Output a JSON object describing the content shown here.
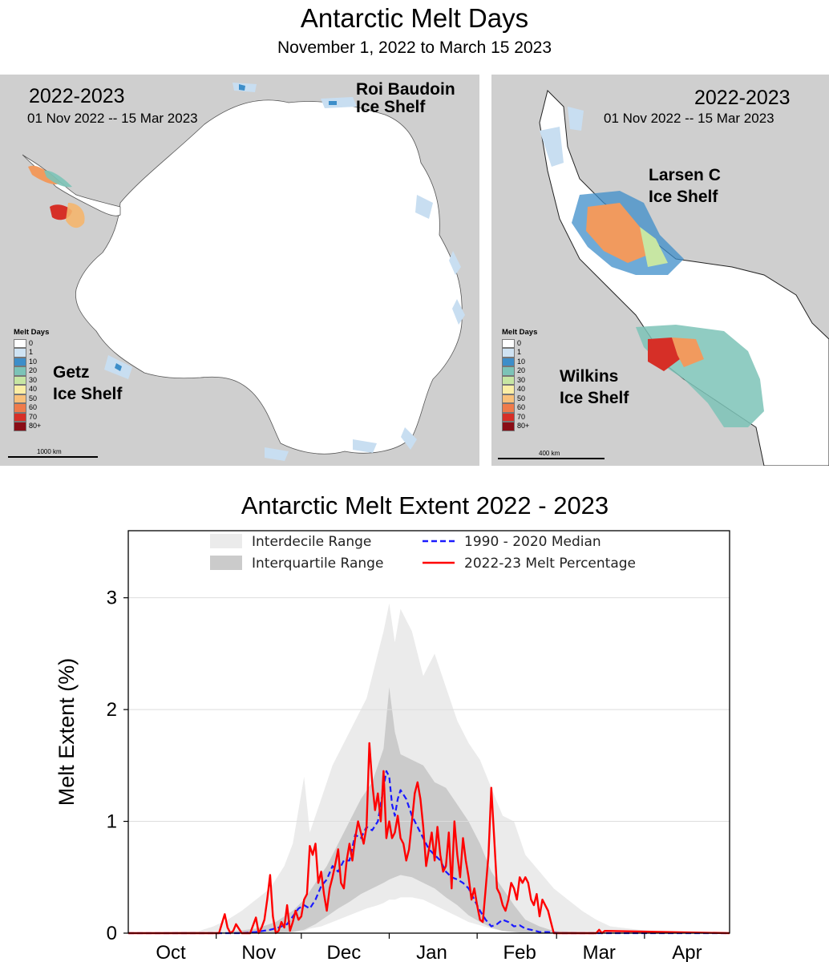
{
  "header": {
    "title": "Antarctic Melt Days",
    "subtitle": "November 1, 2022 to March 15 2023"
  },
  "map_left": {
    "season": "2022-2023",
    "date_range": "01 Nov 2022  -- 15 Mar 2023",
    "label_top_right": "Roi Baudoin\nIce Shelf",
    "label_bottom_left": "Getz\nIce Shelf",
    "scale": "1000 km"
  },
  "map_right": {
    "season": "2022-2023",
    "date_range": "01 Nov 2022  -- 15 Mar 2023",
    "label_upper": "Larsen C\nIce Shelf",
    "label_lower": "Wilkins\nIce Shelf",
    "scale": "400 km"
  },
  "melt_legend": {
    "title": "Melt Days",
    "items": [
      {
        "label": "0",
        "color": "#ffffff"
      },
      {
        "label": "1",
        "color": "#cfe3f3"
      },
      {
        "label": "10",
        "color": "#3d8ec9"
      },
      {
        "label": "20",
        "color": "#7cc3b7"
      },
      {
        "label": "30",
        "color": "#c7e6a3"
      },
      {
        "label": "40",
        "color": "#fbeea5"
      },
      {
        "label": "50",
        "color": "#f9c07a"
      },
      {
        "label": "60",
        "color": "#ef7b4b"
      },
      {
        "label": "70",
        "color": "#d62f27"
      },
      {
        "label": "80+",
        "color": "#8a0d16"
      }
    ]
  },
  "chart_data": {
    "type": "line",
    "title": "Antarctic Melt Extent 2022 - 2023",
    "xlabel": "",
    "ylabel": "Melt Extent (%)",
    "x_unit": "day offset from Oct 1",
    "xlim": [
      0,
      212
    ],
    "ylim": [
      0,
      3.6
    ],
    "yticks": [
      0,
      1,
      2,
      3
    ],
    "month_ticks": [
      {
        "label": "Oct",
        "x": 15
      },
      {
        "label": "Nov",
        "x": 46
      },
      {
        "label": "Dec",
        "x": 76
      },
      {
        "label": "Jan",
        "x": 107
      },
      {
        "label": "Feb",
        "x": 138
      },
      {
        "label": "Mar",
        "x": 166
      },
      {
        "label": "Apr",
        "x": 197
      }
    ],
    "month_boundaries": [
      31,
      61,
      92,
      123,
      151,
      182
    ],
    "grid": "horizontal",
    "legend_position": "top",
    "legend": [
      {
        "label": "Interdecile Range",
        "style": "fill",
        "color": "#ebebeb"
      },
      {
        "label": "Interquartile Range",
        "style": "fill",
        "color": "#cbcbcb"
      },
      {
        "label": "1990 - 2020 Median",
        "style": "dashed",
        "color": "#1a1aff"
      },
      {
        "label": "2022-23 Melt Percentage",
        "style": "solid",
        "color": "#ff0000"
      }
    ],
    "series": [
      {
        "name": "Interdecile Range",
        "x": [
          0,
          25,
          30,
          35,
          40,
          45,
          50,
          55,
          58,
          62,
          64,
          68,
          72,
          76,
          80,
          84,
          88,
          90,
          92,
          94,
          96,
          100,
          104,
          108,
          112,
          116,
          120,
          124,
          128,
          132,
          136,
          140,
          145,
          150,
          155,
          160,
          165,
          170,
          180,
          190,
          212
        ],
        "upper": [
          0.0,
          0.02,
          0.06,
          0.12,
          0.2,
          0.3,
          0.4,
          0.6,
          0.8,
          1.4,
          0.9,
          1.2,
          1.5,
          1.7,
          1.9,
          2.1,
          2.5,
          2.7,
          2.95,
          2.6,
          2.9,
          2.7,
          2.3,
          2.5,
          2.2,
          1.9,
          1.7,
          1.55,
          1.3,
          1.05,
          1.0,
          0.7,
          0.55,
          0.4,
          0.3,
          0.2,
          0.12,
          0.06,
          0.03,
          0.01,
          0.0
        ],
        "lower": [
          0.0,
          0.0,
          0.0,
          0.0,
          0.0,
          0.0,
          0.0,
          0.0,
          0.01,
          0.02,
          0.04,
          0.06,
          0.1,
          0.14,
          0.18,
          0.22,
          0.25,
          0.27,
          0.3,
          0.3,
          0.32,
          0.32,
          0.3,
          0.25,
          0.2,
          0.15,
          0.1,
          0.07,
          0.04,
          0.02,
          0.01,
          0.0,
          0.0,
          0.0,
          0.0,
          0.0,
          0.0,
          0.0,
          0.0,
          0.0,
          0.0
        ]
      },
      {
        "name": "Interquartile Range",
        "x": [
          0,
          35,
          45,
          52,
          58,
          62,
          66,
          70,
          74,
          78,
          82,
          86,
          90,
          92,
          94,
          96,
          100,
          104,
          108,
          112,
          116,
          120,
          124,
          128,
          132,
          136,
          140,
          145,
          150,
          160,
          212
        ],
        "upper": [
          0.0,
          0.01,
          0.04,
          0.1,
          0.2,
          0.3,
          0.45,
          0.6,
          0.8,
          1.0,
          1.2,
          1.35,
          1.65,
          2.2,
          1.8,
          1.6,
          1.55,
          1.5,
          1.35,
          1.3,
          1.15,
          1.0,
          0.8,
          0.55,
          0.4,
          0.25,
          0.12,
          0.06,
          0.02,
          0.01,
          0.0
        ],
        "lower": [
          0.0,
          0.0,
          0.0,
          0.0,
          0.01,
          0.03,
          0.08,
          0.15,
          0.22,
          0.28,
          0.35,
          0.4,
          0.45,
          0.48,
          0.5,
          0.52,
          0.5,
          0.45,
          0.4,
          0.32,
          0.25,
          0.16,
          0.1,
          0.05,
          0.02,
          0.01,
          0.0,
          0.0,
          0.0,
          0.0,
          0.0
        ]
      },
      {
        "name": "1990 - 2020 Median",
        "x": [
          0,
          40,
          45,
          50,
          53,
          56,
          58,
          60,
          62,
          64,
          66,
          68,
          70,
          72,
          74,
          76,
          78,
          80,
          82,
          84,
          86,
          88,
          89,
          90,
          91,
          92,
          93,
          94,
          95,
          96,
          98,
          100,
          102,
          104,
          106,
          108,
          110,
          112,
          114,
          116,
          118,
          120,
          122,
          124,
          126,
          128,
          130,
          132,
          134,
          136,
          138,
          140,
          142,
          145,
          148,
          152,
          156,
          212
        ],
        "y": [
          0.0,
          0.0,
          0.01,
          0.03,
          0.05,
          0.08,
          0.15,
          0.22,
          0.25,
          0.22,
          0.3,
          0.42,
          0.48,
          0.6,
          0.55,
          0.65,
          0.65,
          0.88,
          0.85,
          0.95,
          0.92,
          1.0,
          1.15,
          1.3,
          1.45,
          1.4,
          1.15,
          1.05,
          1.2,
          1.28,
          1.2,
          1.05,
          0.95,
          0.85,
          0.75,
          0.7,
          0.65,
          0.55,
          0.5,
          0.48,
          0.45,
          0.4,
          0.3,
          0.2,
          0.12,
          0.06,
          0.08,
          0.12,
          0.1,
          0.06,
          0.07,
          0.04,
          0.03,
          0.01,
          0.01,
          0.0,
          0.0,
          0.0
        ],
        "style": "dashed"
      },
      {
        "name": "2022-23 Melt Percentage",
        "x": [
          0,
          32,
          34,
          35,
          36,
          37,
          38,
          40,
          43,
          45,
          46,
          47,
          48,
          49,
          50,
          51,
          52,
          53,
          54,
          55,
          56,
          57,
          58,
          59,
          60,
          61,
          62,
          63,
          64,
          65,
          66,
          67,
          68,
          69,
          70,
          71,
          72,
          73,
          74,
          75,
          76,
          77,
          78,
          79,
          80,
          81,
          82,
          83,
          84,
          85,
          86,
          87,
          88,
          89,
          90,
          91,
          92,
          93,
          94,
          95,
          96,
          97,
          98,
          99,
          100,
          101,
          102,
          103,
          104,
          105,
          106,
          107,
          108,
          109,
          110,
          111,
          112,
          113,
          114,
          115,
          116,
          117,
          118,
          119,
          120,
          121,
          122,
          123,
          124,
          125,
          126,
          127,
          128,
          129,
          130,
          131,
          132,
          133,
          134,
          135,
          136,
          137,
          138,
          139,
          140,
          141,
          142,
          143,
          144,
          145,
          146,
          147,
          148,
          149,
          150,
          165,
          166,
          167,
          168,
          212
        ],
        "y": [
          0.0,
          0.0,
          0.17,
          0.05,
          0.0,
          0.02,
          0.08,
          0.0,
          0.0,
          0.14,
          0.0,
          0.05,
          0.12,
          0.3,
          0.52,
          0.15,
          0.0,
          0.02,
          0.1,
          0.05,
          0.25,
          0.02,
          0.1,
          0.2,
          0.12,
          0.15,
          0.3,
          0.35,
          0.78,
          0.7,
          0.8,
          0.45,
          0.55,
          0.35,
          0.2,
          0.4,
          0.5,
          0.62,
          0.75,
          0.45,
          0.4,
          0.65,
          0.8,
          0.65,
          0.85,
          1.0,
          0.9,
          0.8,
          0.95,
          1.7,
          1.35,
          1.1,
          1.25,
          1.0,
          1.45,
          0.85,
          1.0,
          0.85,
          0.9,
          1.05,
          0.85,
          0.8,
          0.65,
          0.75,
          1.0,
          1.25,
          1.35,
          1.2,
          0.95,
          0.6,
          0.75,
          0.9,
          0.65,
          0.95,
          0.7,
          0.55,
          0.6,
          0.9,
          0.4,
          1.0,
          0.7,
          0.5,
          0.85,
          0.65,
          0.5,
          0.3,
          0.4,
          0.25,
          0.12,
          0.1,
          0.4,
          0.7,
          1.3,
          0.85,
          0.4,
          0.35,
          0.25,
          0.2,
          0.3,
          0.45,
          0.4,
          0.3,
          0.5,
          0.45,
          0.5,
          0.45,
          0.3,
          0.25,
          0.35,
          0.15,
          0.3,
          0.25,
          0.2,
          0.1,
          0.0,
          0.0,
          0.03,
          0.0,
          0.02,
          0.0
        ],
        "style": "solid"
      }
    ]
  }
}
